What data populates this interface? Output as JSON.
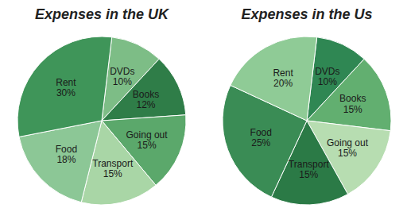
{
  "chart_data": [
    {
      "type": "pie",
      "title": "Expenses in the UK",
      "categories": [
        "DVDs",
        "Books",
        "Going out",
        "Transport",
        "Food",
        "Rent"
      ],
      "values": [
        10,
        12,
        15,
        15,
        18,
        30
      ],
      "value_labels": [
        "10%",
        "12%",
        "15%",
        "15%",
        "18%",
        "30%"
      ],
      "colors": [
        "#7dbd86",
        "#2f7d48",
        "#5ba86b",
        "#a9d6a6",
        "#8cc796",
        "#3f9559"
      ],
      "data_labels": true
    },
    {
      "type": "pie",
      "title": "Expenses in the Us",
      "categories": [
        "DVDs",
        "Books",
        "Going out",
        "Transport",
        "Food",
        "Rent"
      ],
      "values": [
        10,
        15,
        15,
        15,
        25,
        20
      ],
      "value_labels": [
        "10%",
        "15%",
        "15%",
        "15%",
        "25%",
        "20%"
      ],
      "colors": [
        "#2f8753",
        "#62af70",
        "#b7ddb1",
        "#2b7a46",
        "#3a8c55",
        "#8fcb96"
      ],
      "data_labels": true
    }
  ]
}
